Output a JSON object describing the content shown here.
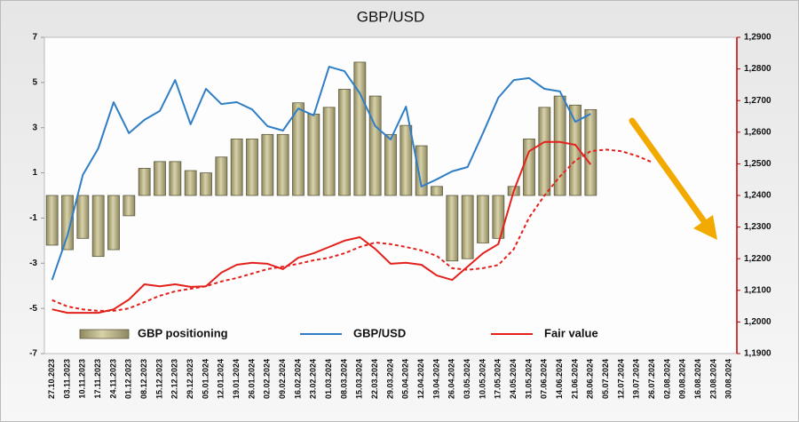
{
  "chart_data": {
    "type": "bar",
    "title": "GBP/USD",
    "categories": [
      "27.10.2023",
      "03.11.2023",
      "10.11.2023",
      "17.11.2023",
      "24.11.2023",
      "01.12.2023",
      "08.12.2023",
      "15.12.2023",
      "22.12.2023",
      "29.12.2023",
      "05.01.2024",
      "12.01.2024",
      "19.01.2024",
      "26.01.2024",
      "02.02.2024",
      "09.02.2024",
      "16.02.2024",
      "23.02.2024",
      "01.03.2024",
      "08.03.2024",
      "15.03.2024",
      "22.03.2024",
      "29.03.2024",
      "05.04.2024",
      "12.04.2024",
      "19.04.2024",
      "26.04.2024",
      "03.05.2024",
      "10.05.2024",
      "17.05.2024",
      "24.05.2024",
      "31.05.2024",
      "07.06.2024",
      "14.06.2024",
      "21.06.2024",
      "28.06.2024",
      "05.07.2024",
      "12.07.2024",
      "19.07.2024",
      "26.07.2024",
      "02.08.2024",
      "09.08.2024",
      "16.08.2024",
      "23.08.2024",
      "30.08.2024"
    ],
    "series": [
      {
        "name": "GBP positioning",
        "type": "bar",
        "color": "#bdb68c",
        "values": [
          -2.2,
          -2.4,
          -1.9,
          -2.7,
          -2.4,
          -0.9,
          1.2,
          1.5,
          1.5,
          1.1,
          1.0,
          1.7,
          2.5,
          2.5,
          2.7,
          2.7,
          4.1,
          3.6,
          3.9,
          4.7,
          5.9,
          4.4,
          2.7,
          3.1,
          2.2,
          0.4,
          -2.9,
          -2.8,
          -2.1,
          -1.9,
          0.4,
          2.5,
          3.9,
          4.4,
          4.0,
          3.8,
          null,
          null,
          null,
          null,
          null,
          null,
          null,
          null,
          null
        ]
      },
      {
        "name": "GBP/USD",
        "type": "line",
        "axis": "y2",
        "color": "#2f7ec6",
        "values": [
          1.2133,
          1.2274,
          1.2465,
          1.2549,
          1.2695,
          1.2597,
          1.2639,
          1.2667,
          1.2765,
          1.2625,
          1.2737,
          1.2689,
          1.2695,
          1.2672,
          1.2619,
          1.2605,
          1.2675,
          1.2653,
          1.2807,
          1.2793,
          1.2723,
          1.2619,
          1.2577,
          1.2681,
          1.2428,
          1.2451,
          1.2476,
          1.249,
          1.2597,
          1.2709,
          1.2765,
          1.2771,
          1.2737,
          1.2729,
          1.2633,
          1.2658,
          null,
          null,
          null,
          null,
          null,
          null,
          null,
          null,
          null
        ]
      },
      {
        "name": "Fair value",
        "type": "line",
        "axis": "y2",
        "color": "#e3211c",
        "values": [
          1.204,
          1.2029,
          1.2029,
          1.2029,
          1.204,
          1.2071,
          1.2119,
          1.2113,
          1.2119,
          1.2111,
          1.2113,
          1.2156,
          1.2181,
          1.2187,
          1.2184,
          1.2167,
          1.2203,
          1.2217,
          1.2237,
          1.2257,
          1.2268,
          1.2231,
          1.2184,
          1.2187,
          1.2181,
          1.2147,
          1.2133,
          1.2175,
          1.2217,
          1.2246,
          1.2414,
          1.254,
          1.2569,
          1.2569,
          1.256,
          1.2498,
          null,
          null,
          null,
          null,
          null,
          null,
          null,
          null,
          null
        ]
      },
      {
        "type": "line",
        "axis": "y2",
        "color": "#e3211c",
        "dashed": true,
        "values": [
          1.2069,
          1.2049,
          1.204,
          1.2035,
          1.2035,
          1.2043,
          1.2063,
          1.2083,
          1.2097,
          1.2105,
          1.2113,
          1.2128,
          1.2139,
          1.2153,
          1.2167,
          1.2175,
          1.2184,
          1.2195,
          1.2203,
          1.2217,
          1.2237,
          1.2251,
          1.2246,
          1.2237,
          1.2226,
          1.2209,
          1.217,
          1.2165,
          1.217,
          1.218,
          1.223,
          1.233,
          1.24,
          1.246,
          1.251,
          1.254,
          1.2545,
          1.254,
          1.2525,
          1.2505,
          null,
          null,
          null,
          null,
          null
        ]
      }
    ],
    "ylim": [
      -7,
      7
    ],
    "yticks": [
      -7,
      -5,
      -3,
      -1,
      1,
      3,
      5,
      7
    ],
    "y2lim": [
      1.19,
      1.29
    ],
    "y2ticks": [
      {
        "value": 1.19,
        "label": "1,1900"
      },
      {
        "value": 1.2,
        "label": "1,2000"
      },
      {
        "value": 1.21,
        "label": "1,2100"
      },
      {
        "value": 1.22,
        "label": "1,2200"
      },
      {
        "value": 1.23,
        "label": "1,2300"
      },
      {
        "value": 1.24,
        "label": "1,2400"
      },
      {
        "value": 1.25,
        "label": "1,2500"
      },
      {
        "value": 1.26,
        "label": "1,2600"
      },
      {
        "value": 1.27,
        "label": "1,2700"
      },
      {
        "value": 1.28,
        "label": "1,2800"
      },
      {
        "value": 1.29,
        "label": "1,2900"
      }
    ]
  }
}
